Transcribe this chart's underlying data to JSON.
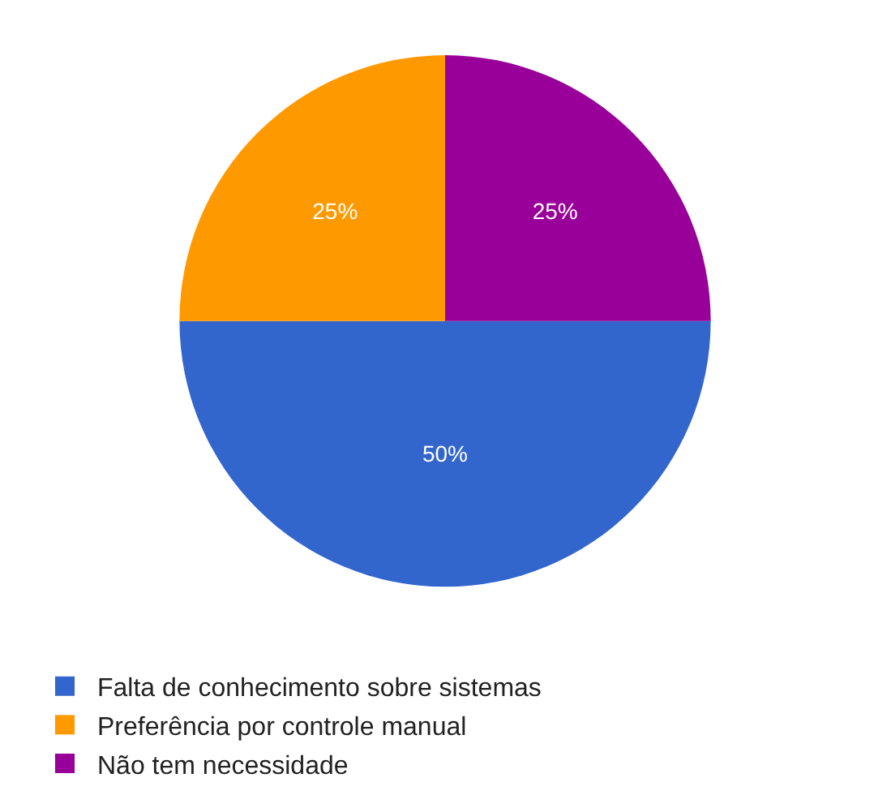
{
  "chart_data": {
    "type": "pie",
    "categories": [
      "Falta de conhecimento sobre sistemas",
      "Preferência por controle manual",
      "Não tem necessidade"
    ],
    "values": [
      50,
      25,
      25
    ],
    "value_labels": [
      "50%",
      "25%",
      "25%"
    ],
    "colors": [
      "#3366cc",
      "#ff9900",
      "#990099"
    ],
    "legend": "bottom left"
  }
}
